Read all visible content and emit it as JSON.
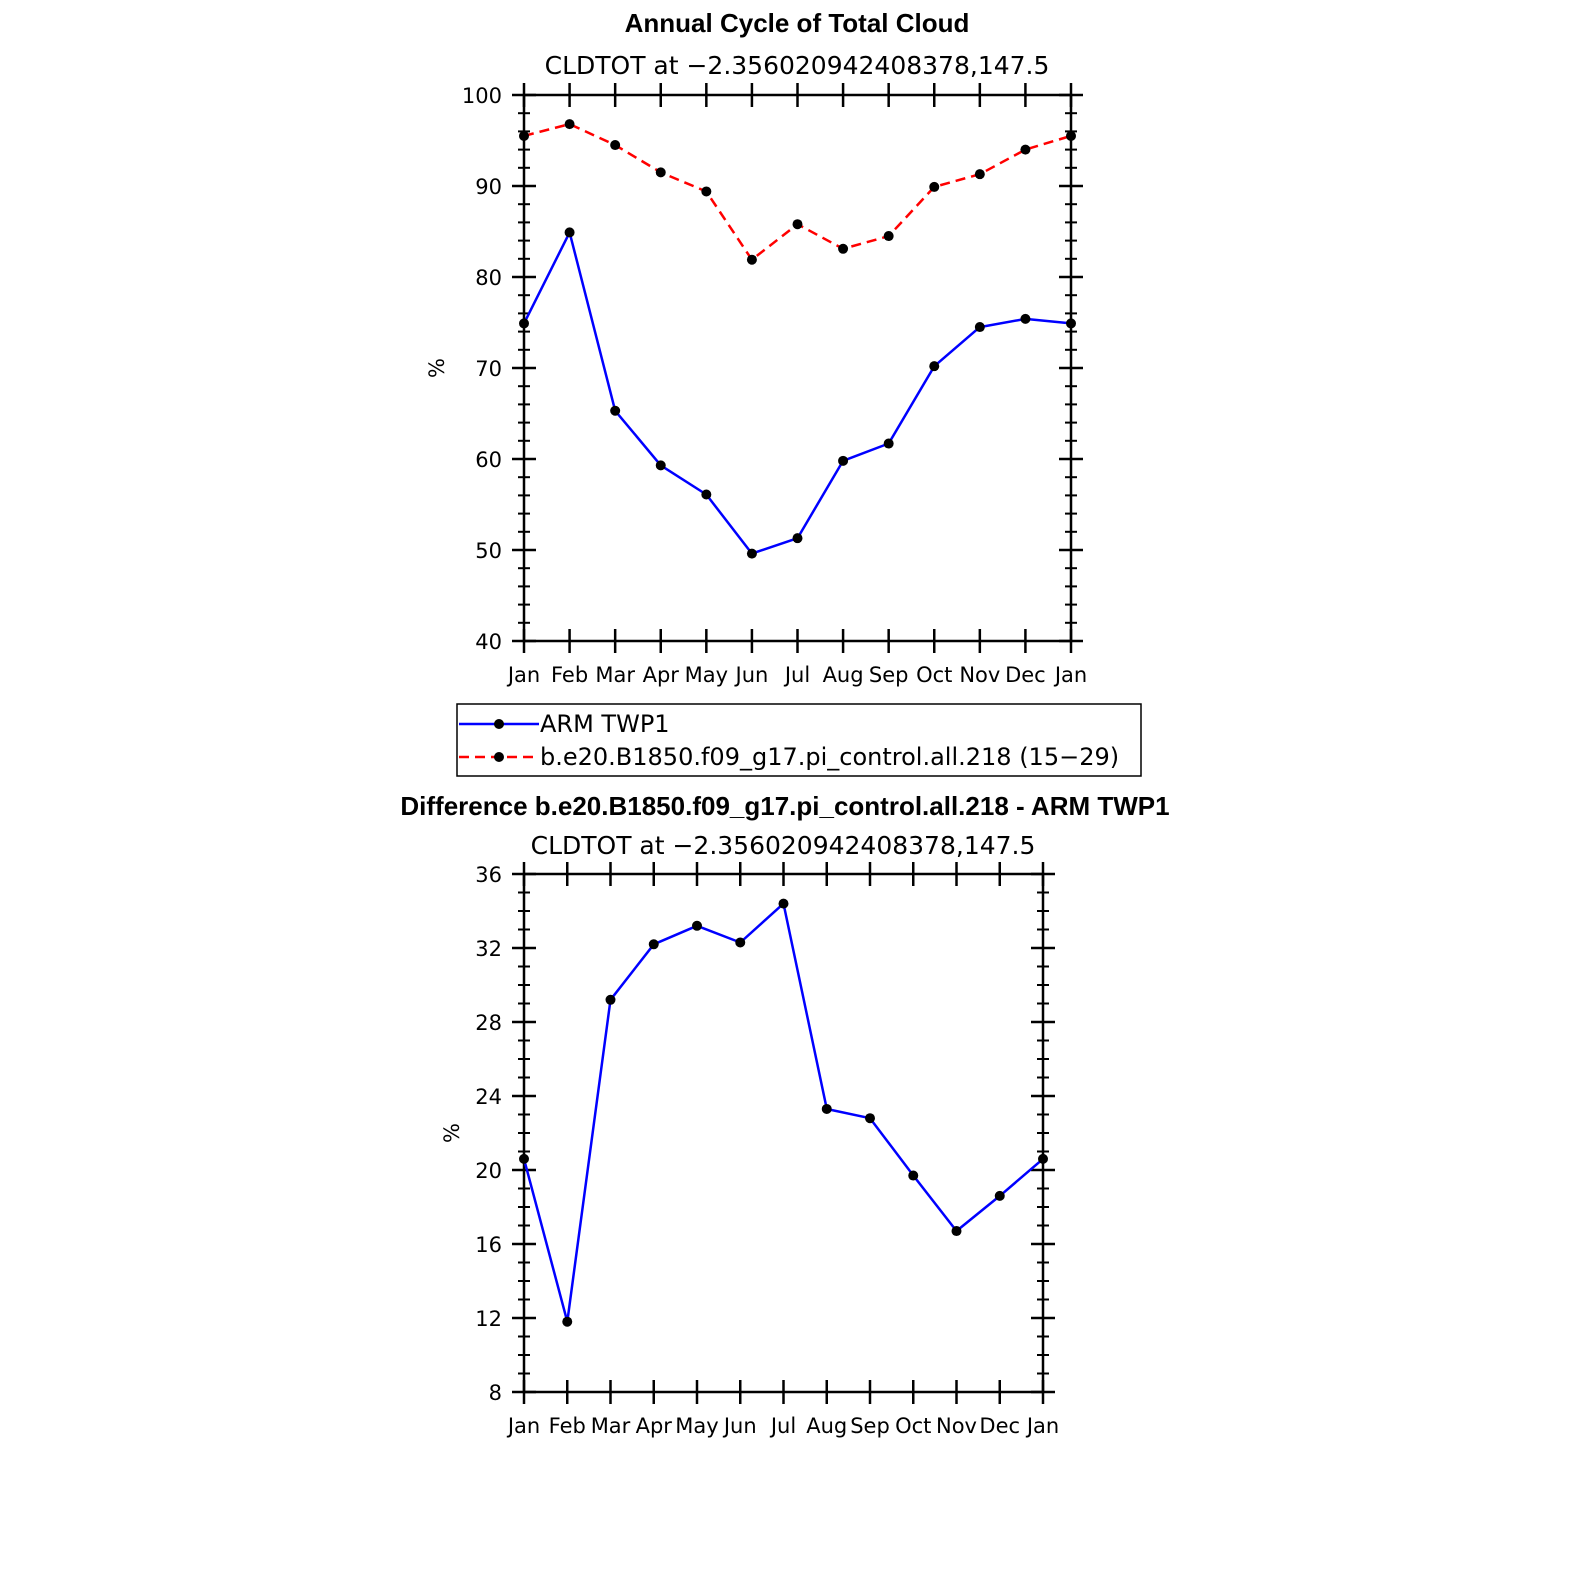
{
  "chart_data": [
    {
      "type": "line",
      "title": "Annual Cycle of Total Cloud",
      "subtitle": "CLDTOT at −2.356020942408378,147.5",
      "xlabel": "",
      "ylabel": "%",
      "categories": [
        "Jan",
        "Feb",
        "Mar",
        "Apr",
        "May",
        "Jun",
        "Jul",
        "Aug",
        "Sep",
        "Oct",
        "Nov",
        "Dec",
        "Jan"
      ],
      "ylim": [
        40,
        100
      ],
      "yticks": [
        40,
        50,
        60,
        70,
        80,
        90,
        100
      ],
      "series": [
        {
          "name": "ARM TWP1",
          "color": "#0000ff",
          "dash": "solid",
          "marker": "dot",
          "values": [
            74.9,
            84.9,
            65.3,
            59.3,
            56.1,
            49.6,
            51.3,
            59.8,
            61.7,
            70.2,
            74.5,
            75.4,
            74.9
          ]
        },
        {
          "name": "b.e20.B1850.f09_g17.pi_control.all.218 (15−29)",
          "color": "#ff0000",
          "dash": "dashed",
          "marker": "dot",
          "values": [
            95.5,
            96.8,
            94.5,
            91.5,
            89.4,
            81.9,
            85.8,
            83.1,
            84.5,
            89.9,
            91.3,
            94.0,
            95.5
          ]
        }
      ],
      "legend": "below"
    },
    {
      "type": "line",
      "title": "Difference b.e20.B1850.f09_g17.pi_control.all.218 - ARM TWP1",
      "subtitle": "CLDTOT at −2.356020942408378,147.5",
      "xlabel": "",
      "ylabel": "%",
      "categories": [
        "Jan",
        "Feb",
        "Mar",
        "Apr",
        "May",
        "Jun",
        "Jul",
        "Aug",
        "Sep",
        "Oct",
        "Nov",
        "Dec",
        "Jan"
      ],
      "ylim": [
        8,
        36
      ],
      "yticks": [
        8,
        12,
        16,
        20,
        24,
        28,
        32,
        36
      ],
      "series": [
        {
          "color": "#0000ff",
          "dash": "solid",
          "marker": "dot",
          "values": [
            20.6,
            11.8,
            29.2,
            32.2,
            33.2,
            32.3,
            34.4,
            23.3,
            22.8,
            19.7,
            16.7,
            18.6,
            20.6
          ]
        }
      ]
    }
  ]
}
